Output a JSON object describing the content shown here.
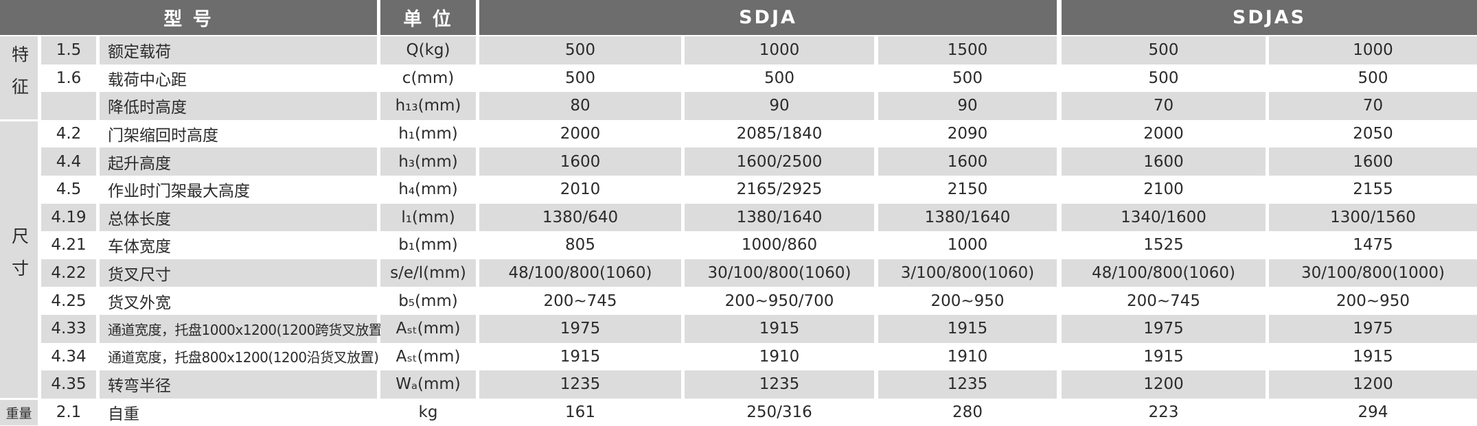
{
  "header": {
    "model": "型 号",
    "unit": "单 位",
    "groups": [
      "SDJA",
      "SDJAS"
    ]
  },
  "sections": [
    {
      "label": "特征",
      "rows": [
        {
          "code": "1.5",
          "name": "额定载荷",
          "unit": "Q(kg)",
          "values": [
            "500",
            "1000",
            "1500",
            "500",
            "1000"
          ]
        },
        {
          "code": "1.6",
          "name": "载荷中心距",
          "unit": "c(mm)",
          "values": [
            "500",
            "500",
            "500",
            "500",
            "500"
          ]
        },
        {
          "code": null,
          "name": "降低时高度",
          "unit": "h₁₃(mm)",
          "values": [
            "80",
            "90",
            "90",
            "70",
            "70"
          ]
        }
      ]
    },
    {
      "label": "尺寸",
      "rows": [
        {
          "code": "4.2",
          "name": "门架缩回时高度",
          "unit": "h₁(mm)",
          "values": [
            "2000",
            "2085/1840",
            "2090",
            "2000",
            "2050"
          ]
        },
        {
          "code": "4.4",
          "name": "起升高度",
          "unit": "h₃(mm)",
          "values": [
            "1600",
            "1600/2500",
            "1600",
            "1600",
            "1600"
          ]
        },
        {
          "code": "4.5",
          "name": "作业时门架最大高度",
          "unit": "h₄(mm)",
          "values": [
            "2010",
            "2165/2925",
            "2150",
            "2100",
            "2155"
          ]
        },
        {
          "code": "4.19",
          "name": "总体长度",
          "unit": "l₁(mm)",
          "values": [
            "1380/640",
            "1380/1640",
            "1380/1640",
            "1340/1600",
            "1300/1560"
          ]
        },
        {
          "code": "4.21",
          "name": "车体宽度",
          "unit": "b₁(mm)",
          "values": [
            "805",
            "1000/860",
            "1000",
            "1525",
            "1475"
          ]
        },
        {
          "code": "4.22",
          "name": "货叉尺寸",
          "unit": "s/e/l(mm)",
          "values": [
            "48/100/800(1060)",
            "30/100/800(1060)",
            "3/100/800(1060)",
            "48/100/800(1060)",
            "30/100/800(1000)"
          ]
        },
        {
          "code": "4.25",
          "name": "货叉外宽",
          "unit": "b₅(mm)",
          "values": [
            "200~745",
            "200~950/700",
            "200~950",
            "200~745",
            "200~950"
          ]
        },
        {
          "code": "4.33",
          "name": "通道宽度，托盘1000x1200(1200跨货叉放置)",
          "unit": "Aₛₜ(mm)",
          "values": [
            "1975",
            "1915",
            "1915",
            "1975",
            "1975"
          ]
        },
        {
          "code": "4.34",
          "name": "通道宽度，托盘800x1200(1200沿货叉放置)",
          "unit": "Aₛₜ(mm)",
          "values": [
            "1915",
            "1910",
            "1910",
            "1915",
            "1915"
          ]
        },
        {
          "code": "4.35",
          "name": "转弯半径",
          "unit": "Wₐ(mm)",
          "values": [
            "1235",
            "1235",
            "1235",
            "1200",
            "1200"
          ]
        }
      ]
    },
    {
      "label": "重量",
      "rows": [
        {
          "code": "2.1",
          "name": "自重",
          "unit": "kg",
          "values": [
            "161",
            "250/316",
            "280",
            "223",
            "294"
          ]
        }
      ]
    }
  ]
}
